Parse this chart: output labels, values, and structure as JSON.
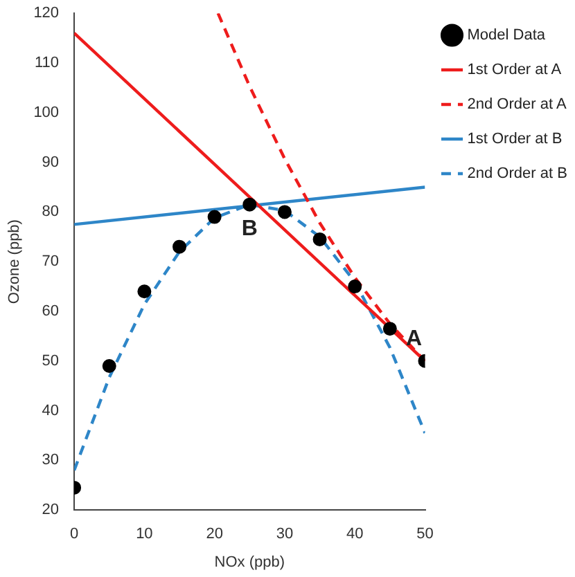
{
  "chart_data": {
    "type": "line",
    "xlabel": "NOx (ppb)",
    "ylabel": "Ozone (ppb)",
    "xlim": [
      0,
      50
    ],
    "xticks": [
      0,
      10,
      20,
      30,
      40,
      50
    ],
    "ylim": [
      20,
      120
    ],
    "yticks": [
      20,
      30,
      40,
      50,
      60,
      70,
      80,
      90,
      100,
      110,
      120
    ],
    "grid": false,
    "legend": "top right",
    "series": [
      {
        "name": "Model Data",
        "type": "scatter",
        "marker": "circle",
        "color": "#000000",
        "x": [
          0,
          5,
          10,
          15,
          20,
          25,
          30,
          35,
          40,
          45,
          50
        ],
        "values": [
          24.5,
          49,
          64,
          73,
          79,
          81.5,
          80,
          74.5,
          65,
          56.5,
          50
        ]
      },
      {
        "name": "1st Order at A",
        "line_style": "solid",
        "color": "#ee1c1c",
        "x": [
          0,
          50
        ],
        "values": [
          116,
          50
        ]
      },
      {
        "name": "2nd Order at A",
        "line_style": "dashed",
        "color": "#ee1c1c",
        "x": [
          20.5,
          25,
          30,
          35,
          40,
          45,
          50
        ],
        "values": [
          120,
          105.3,
          90.7,
          77.8,
          66.8,
          57.5,
          50
        ]
      },
      {
        "name": "1st Order at B",
        "line_style": "solid",
        "color": "#2e86c8",
        "x": [
          0,
          50
        ],
        "values": [
          77.5,
          85
        ]
      },
      {
        "name": "2nd Order at B",
        "line_style": "dashed",
        "color": "#2e86c8",
        "x": [
          0,
          5,
          10,
          15,
          20,
          25,
          30,
          35,
          40,
          45,
          50
        ],
        "values": [
          28,
          46.7,
          61.4,
          72,
          78.8,
          81.5,
          80.3,
          75,
          65.9,
          52.7,
          35.5
        ]
      }
    ],
    "annotations": [
      {
        "text": "A",
        "x": 50,
        "y": 50
      },
      {
        "text": "B",
        "x": 25,
        "y": 81.5
      }
    ]
  }
}
